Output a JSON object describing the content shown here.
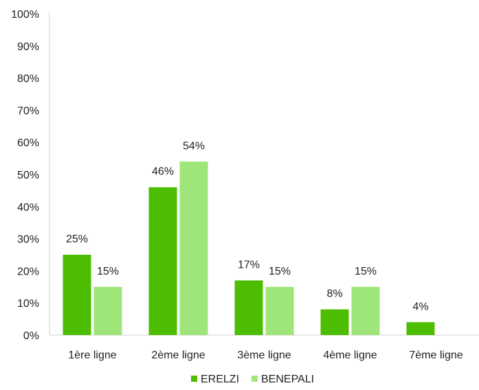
{
  "chart_data": {
    "type": "bar",
    "categories": [
      "1ère ligne",
      "2ème ligne",
      "3ème ligne",
      "4ème ligne",
      "7ème ligne"
    ],
    "series": [
      {
        "name": "ERELZI",
        "values": [
          25,
          46,
          17,
          8,
          4
        ],
        "color": "#4cbd00"
      },
      {
        "name": "BENEPALI",
        "values": [
          15,
          54,
          15,
          15,
          null
        ],
        "color": "#9ee67a"
      }
    ],
    "data_labels": [
      [
        "25%",
        "46%",
        "17%",
        "8%",
        "4%"
      ],
      [
        "15%",
        "54%",
        "15%",
        "15%",
        ""
      ]
    ],
    "yticks": [
      "0%",
      "10%",
      "20%",
      "30%",
      "40%",
      "50%",
      "60%",
      "70%",
      "80%",
      "90%",
      "100%"
    ],
    "ylim": [
      0,
      100
    ],
    "title": "",
    "xlabel": "",
    "ylabel": "",
    "legend": "bottom",
    "grid": false
  }
}
